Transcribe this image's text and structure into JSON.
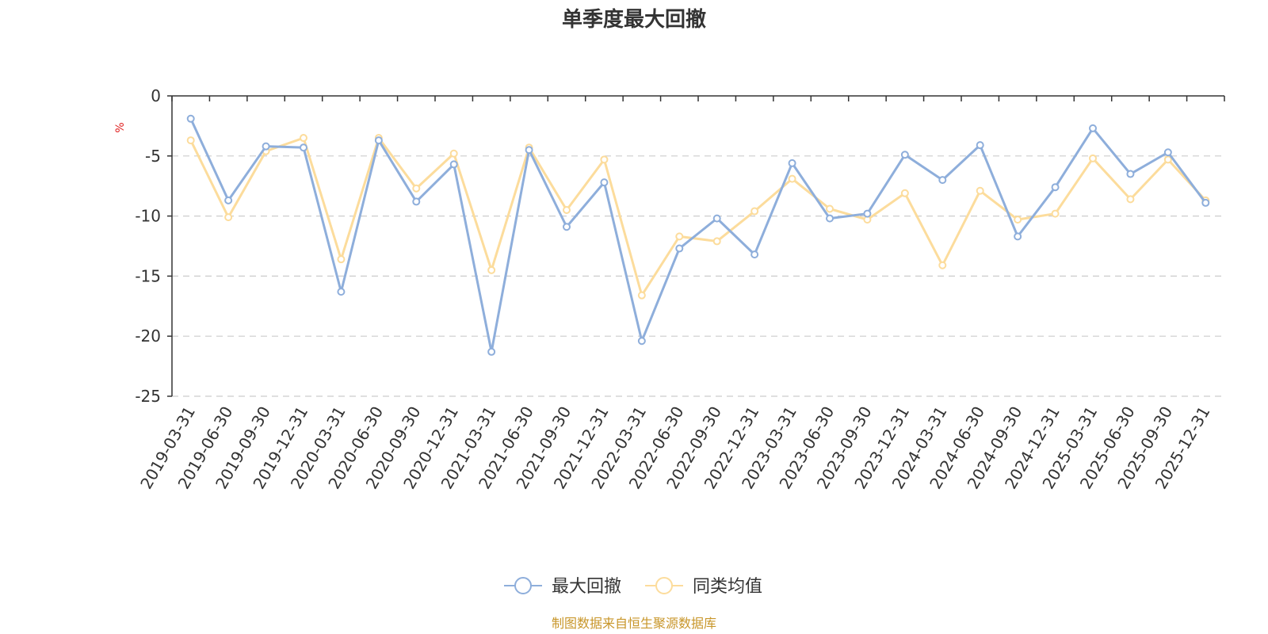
{
  "chart_data": {
    "type": "line",
    "title": "单季度最大回撤",
    "ylabel": "%",
    "ylim": [
      -25,
      0
    ],
    "yticks": [
      0,
      -5,
      -10,
      -15,
      -20,
      -25
    ],
    "grid": true,
    "legend_position": "bottom",
    "categories": [
      "2019-03-31",
      "2019-06-30",
      "2019-09-30",
      "2019-12-31",
      "2020-03-31",
      "2020-06-30",
      "2020-09-30",
      "2020-12-31",
      "2021-03-31",
      "2021-06-30",
      "2021-09-30",
      "2021-12-31",
      "2022-03-31",
      "2022-06-30",
      "2022-09-30",
      "2022-12-31",
      "2023-03-31",
      "2023-06-30",
      "2023-09-30",
      "2023-12-31",
      "2024-03-31",
      "2024-06-30",
      "2024-09-30",
      "2024-12-31",
      "2025-03-31",
      "2025-06-30",
      "2025-09-30",
      "2025-12-31"
    ],
    "series": [
      {
        "name": "最大回撤",
        "color": "#8eaedb",
        "values": [
          -1.9,
          -8.7,
          -4.2,
          -4.3,
          -16.3,
          -3.7,
          -8.8,
          -5.7,
          -21.3,
          -4.5,
          -10.9,
          -7.2,
          -20.4,
          -12.7,
          -10.2,
          -13.2,
          -5.6,
          -10.2,
          -9.8,
          -4.9,
          -7.0,
          -4.1,
          -11.7,
          -7.6,
          -2.7,
          -6.5,
          -4.7,
          -8.9
        ]
      },
      {
        "name": "同类均值",
        "color": "#fcdc9c",
        "values": [
          -3.7,
          -10.1,
          -4.6,
          -3.5,
          -13.6,
          -3.5,
          -7.7,
          -4.8,
          -14.5,
          -4.3,
          -9.5,
          -5.3,
          -16.6,
          -11.7,
          -12.1,
          -9.6,
          -6.9,
          -9.4,
          -10.3,
          -8.1,
          -14.1,
          -7.9,
          -10.3,
          -9.8,
          -5.2,
          -8.6,
          -5.3,
          -8.7
        ]
      }
    ],
    "source": "制图数据来自恒生聚源数据库"
  }
}
